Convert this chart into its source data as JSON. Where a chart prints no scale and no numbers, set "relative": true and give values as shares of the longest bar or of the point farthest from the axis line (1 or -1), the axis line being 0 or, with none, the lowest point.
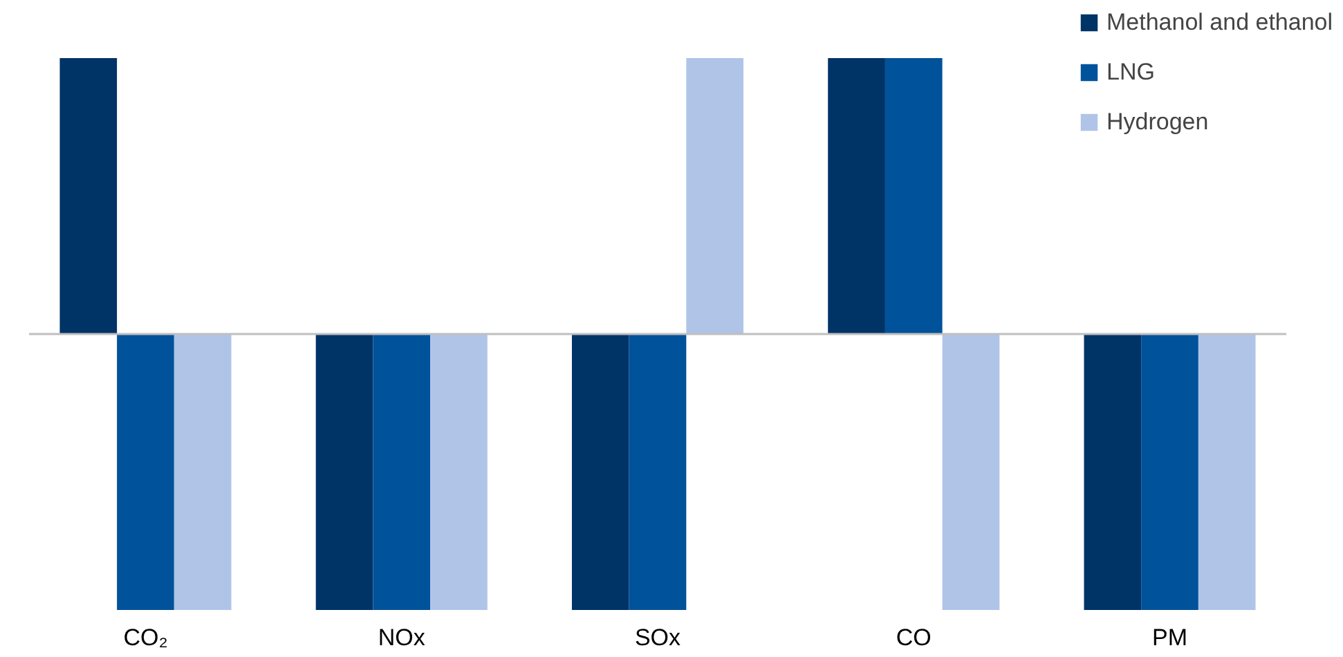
{
  "chart_data": {
    "type": "bar",
    "relative": true,
    "categories": [
      "CO₂",
      "NOx",
      "SOx",
      "CO",
      "PM"
    ],
    "series": [
      {
        "name": "Methanol and ethanol",
        "color": "#003366",
        "values": [
          1,
          -1,
          -1,
          1,
          -1
        ]
      },
      {
        "name": "LNG",
        "color": "#00529b",
        "values": [
          -1,
          -1,
          -1,
          1,
          -1
        ]
      },
      {
        "name": "Hydrogen",
        "color": "#b0c4e8",
        "values": [
          -1,
          -1,
          1,
          -1,
          -1
        ]
      }
    ],
    "legend": "top right"
  }
}
